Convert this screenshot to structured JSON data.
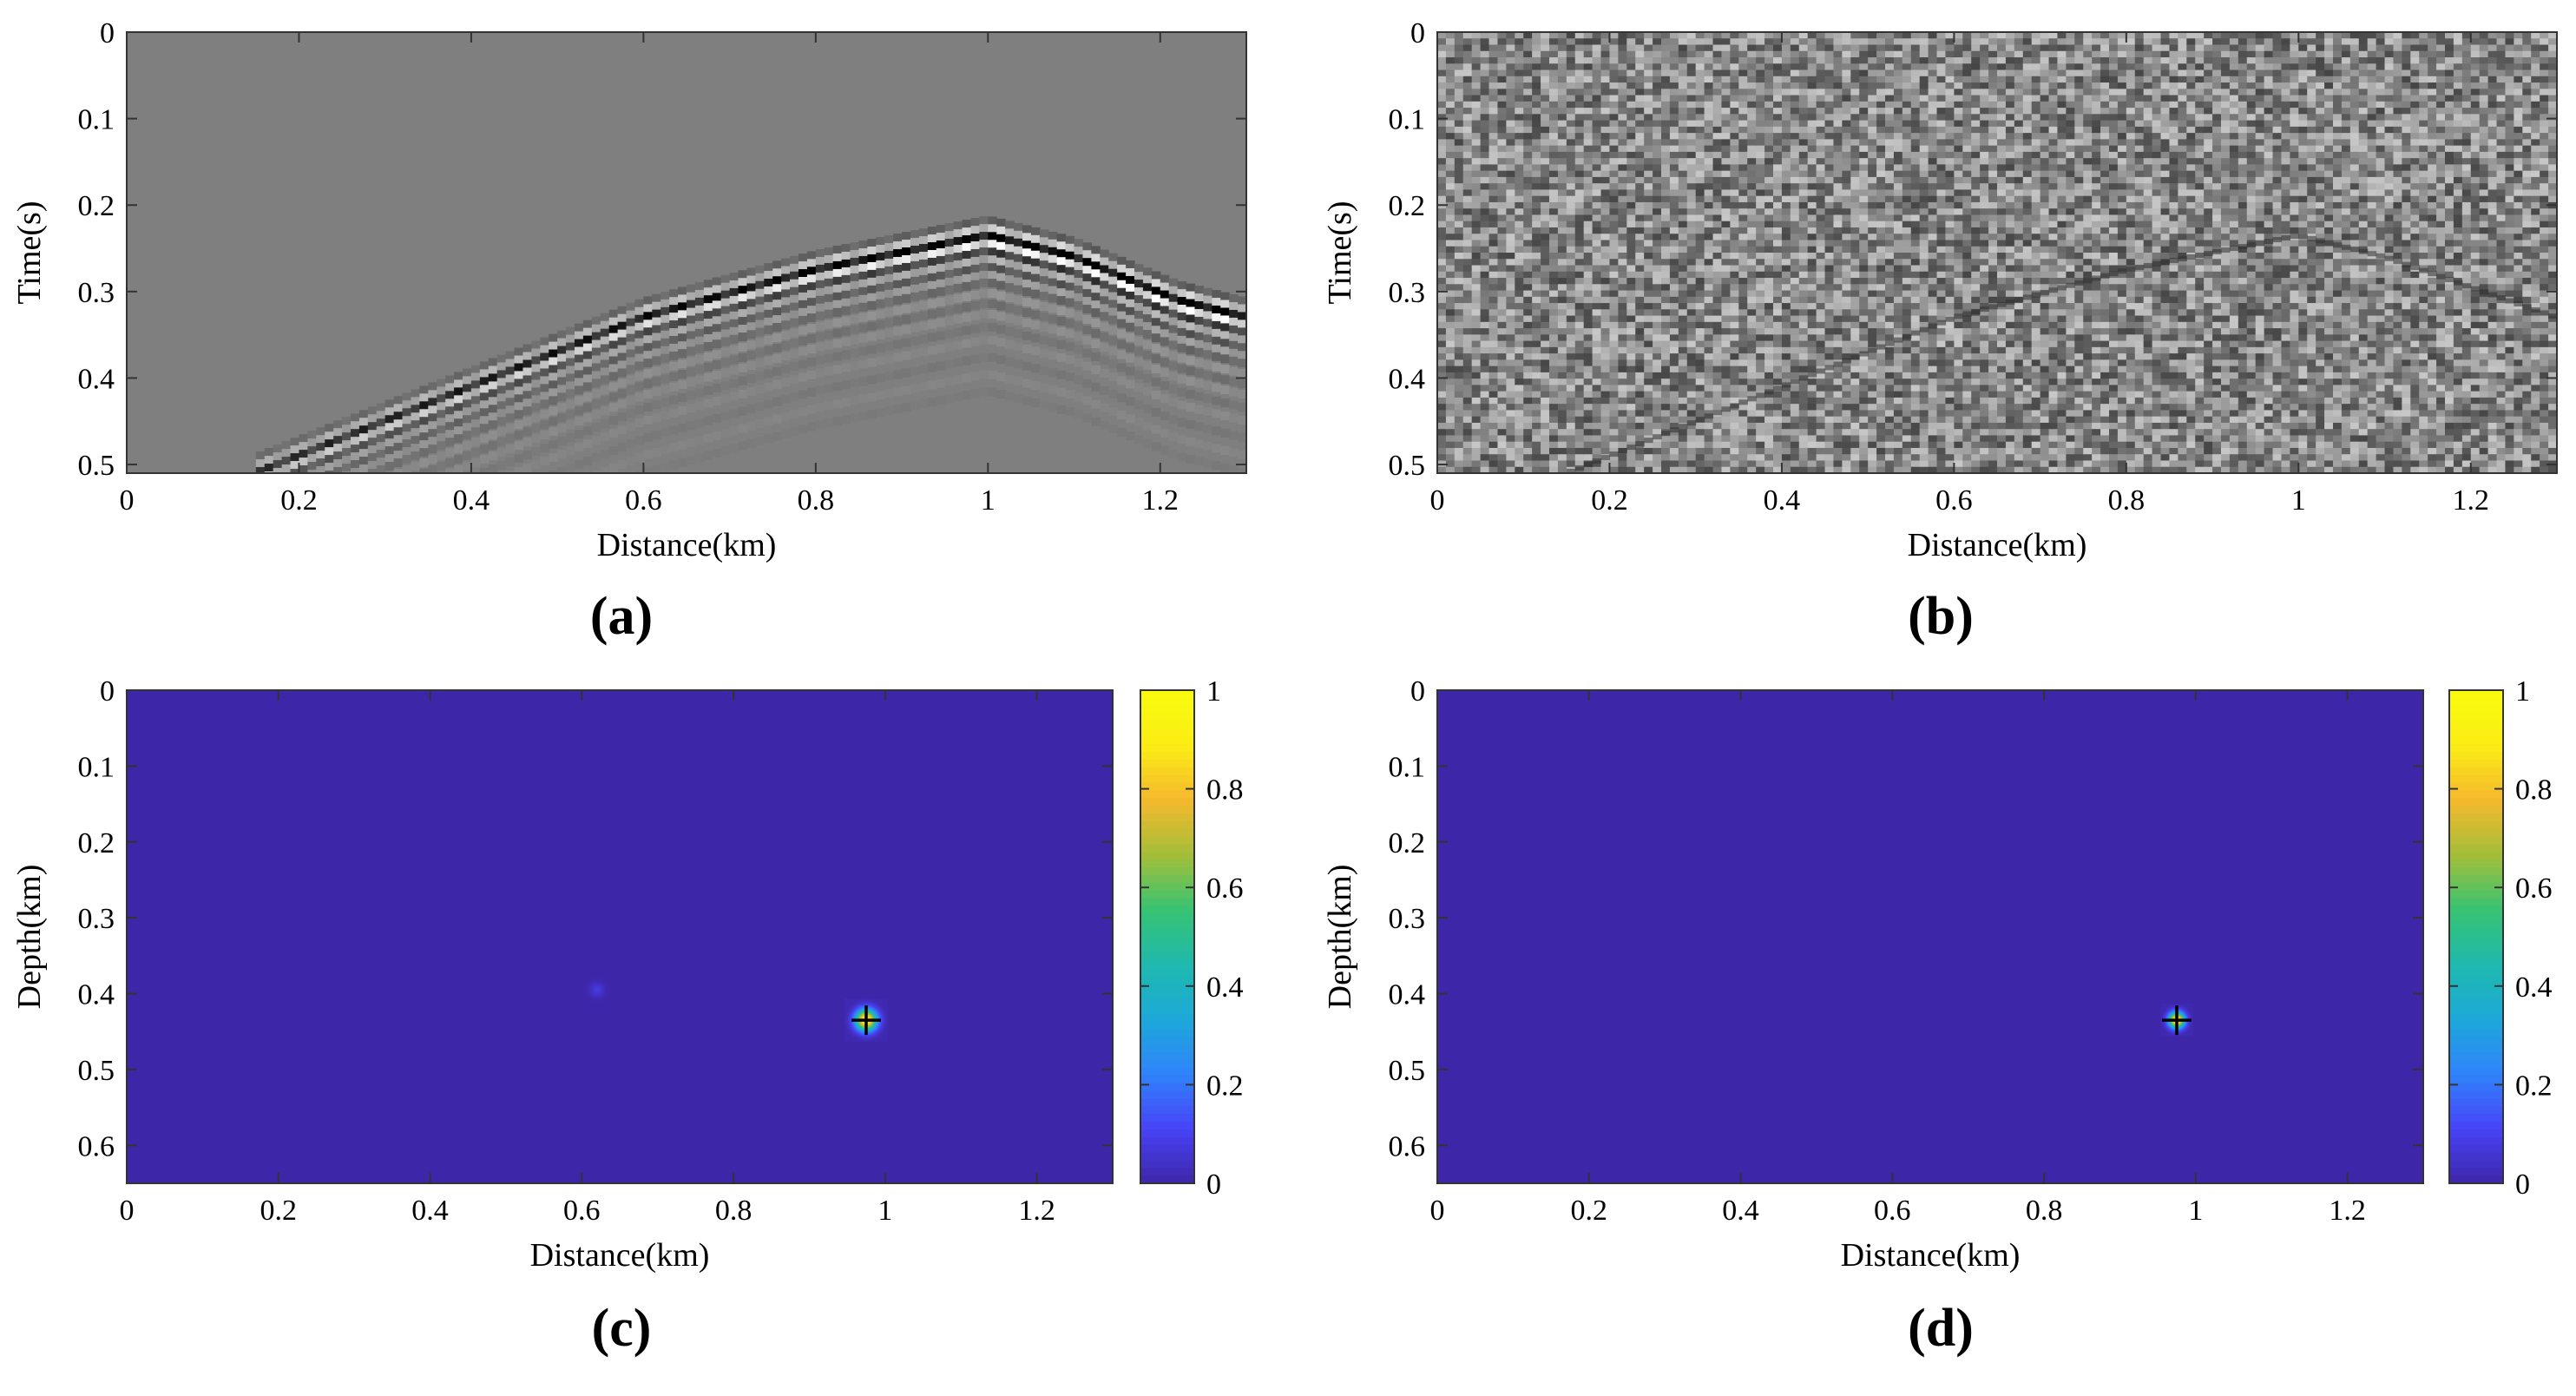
{
  "figure": {
    "colormap": {
      "name": "parula",
      "stops": [
        "#3e26a8",
        "#4743f8",
        "#2f84fa",
        "#1da9d9",
        "#1fb9ad",
        "#38c372",
        "#a5be38",
        "#f5b92e",
        "#faed14",
        "#f9fb0e"
      ]
    },
    "colors": {
      "axis": "#333333",
      "seismic_background": "#7f7f7f",
      "source_marker": "#000000"
    }
  },
  "chart_data": [
    {
      "id": "a",
      "type": "heatmap",
      "panel_label": "(a)",
      "description_kind": "seismic_gather_clean",
      "xlabel": "Distance(km)",
      "ylabel": "Time(s)",
      "xlim": [
        0,
        1.3
      ],
      "ylim": [
        0.51,
        0
      ],
      "xticks": [
        0,
        0.2,
        0.4,
        0.6,
        0.8,
        1,
        1.2
      ],
      "xticklabels": [
        "0",
        "0.2",
        "0.4",
        "0.6",
        "0.8",
        "1",
        "1.2"
      ],
      "yticks": [
        0,
        0.1,
        0.2,
        0.3,
        0.4,
        0.5
      ],
      "yticklabels": [
        "0",
        "0.1",
        "0.2",
        "0.3",
        "0.4",
        "0.5"
      ],
      "events": [
        {
          "name": "direct-arrival",
          "apex_x_km": 1.0,
          "apex_t_s": 0.235,
          "points": [
            [
              0.15,
              0.51
            ],
            [
              0.4,
              0.41
            ],
            [
              0.6,
              0.33
            ],
            [
              0.8,
              0.275
            ],
            [
              0.95,
              0.245
            ],
            [
              1.0,
              0.235
            ],
            [
              1.1,
              0.26
            ],
            [
              1.22,
              0.31
            ],
            [
              1.3,
              0.33
            ]
          ]
        }
      ]
    },
    {
      "id": "b",
      "type": "heatmap",
      "panel_label": "(b)",
      "description_kind": "seismic_gather_noisy",
      "xlabel": "Distance(km)",
      "ylabel": "Time(s)",
      "xlim": [
        0,
        1.3
      ],
      "ylim": [
        0.51,
        0
      ],
      "xticks": [
        0,
        0.2,
        0.4,
        0.6,
        0.8,
        1,
        1.2
      ],
      "xticklabels": [
        "0",
        "0.2",
        "0.4",
        "0.6",
        "0.8",
        "1",
        "1.2"
      ],
      "yticks": [
        0,
        0.1,
        0.2,
        0.3,
        0.4,
        0.5
      ],
      "yticklabels": [
        "0",
        "0.1",
        "0.2",
        "0.3",
        "0.4",
        "0.5"
      ],
      "events": [
        {
          "name": "direct-arrival",
          "apex_x_km": 1.0,
          "apex_t_s": 0.235,
          "points": [
            [
              0.15,
              0.51
            ],
            [
              0.4,
              0.41
            ],
            [
              0.6,
              0.33
            ],
            [
              0.8,
              0.275
            ],
            [
              1.0,
              0.235
            ],
            [
              1.1,
              0.26
            ],
            [
              1.3,
              0.33
            ]
          ]
        }
      ]
    },
    {
      "id": "c",
      "type": "heatmap",
      "panel_label": "(c)",
      "description_kind": "location_image",
      "xlabel": "Distance(km)",
      "ylabel": "Depth(km)",
      "xlim": [
        0,
        1.3
      ],
      "ylim": [
        0.65,
        0
      ],
      "xticks": [
        0,
        0.2,
        0.4,
        0.6,
        0.8,
        1,
        1.2
      ],
      "xticklabels": [
        "0",
        "0.2",
        "0.4",
        "0.6",
        "0.8",
        "1",
        "1.2"
      ],
      "yticks": [
        0,
        0.1,
        0.2,
        0.3,
        0.4,
        0.5,
        0.6
      ],
      "yticklabels": [
        "0",
        "0.1",
        "0.2",
        "0.3",
        "0.4",
        "0.5",
        "0.6"
      ],
      "clim": [
        0,
        1
      ],
      "colorbar_ticks": [
        0,
        0.2,
        0.4,
        0.6,
        0.8,
        1
      ],
      "colorbar_ticklabels": [
        "0",
        "0.2",
        "0.4",
        "0.6",
        "0.8",
        "1"
      ],
      "source": {
        "x_km": 0.975,
        "z_km": 0.435,
        "peak": 1.0,
        "spread_km": 0.012
      },
      "artifacts": [
        {
          "x_km": 0.62,
          "z_km": 0.395,
          "peak": 0.08,
          "spread_km": 0.008
        }
      ]
    },
    {
      "id": "d",
      "type": "heatmap",
      "panel_label": "(d)",
      "description_kind": "location_image",
      "xlabel": "Distance(km)",
      "ylabel": "Depth(km)",
      "xlim": [
        0,
        1.3
      ],
      "ylim": [
        0.65,
        0
      ],
      "xticks": [
        0,
        0.2,
        0.4,
        0.6,
        0.8,
        1,
        1.2
      ],
      "xticklabels": [
        "0",
        "0.2",
        "0.4",
        "0.6",
        "0.8",
        "1",
        "1.2"
      ],
      "yticks": [
        0,
        0.1,
        0.2,
        0.3,
        0.4,
        0.5,
        0.6
      ],
      "yticklabels": [
        "0",
        "0.1",
        "0.2",
        "0.3",
        "0.4",
        "0.5",
        "0.6"
      ],
      "clim": [
        0,
        1
      ],
      "colorbar_ticks": [
        0,
        0.2,
        0.4,
        0.6,
        0.8,
        1
      ],
      "colorbar_ticklabels": [
        "0",
        "0.2",
        "0.4",
        "0.6",
        "0.8",
        "1"
      ],
      "source": {
        "x_km": 0.975,
        "z_km": 0.435,
        "peak": 1.0,
        "spread_km": 0.009
      },
      "artifacts": []
    }
  ]
}
